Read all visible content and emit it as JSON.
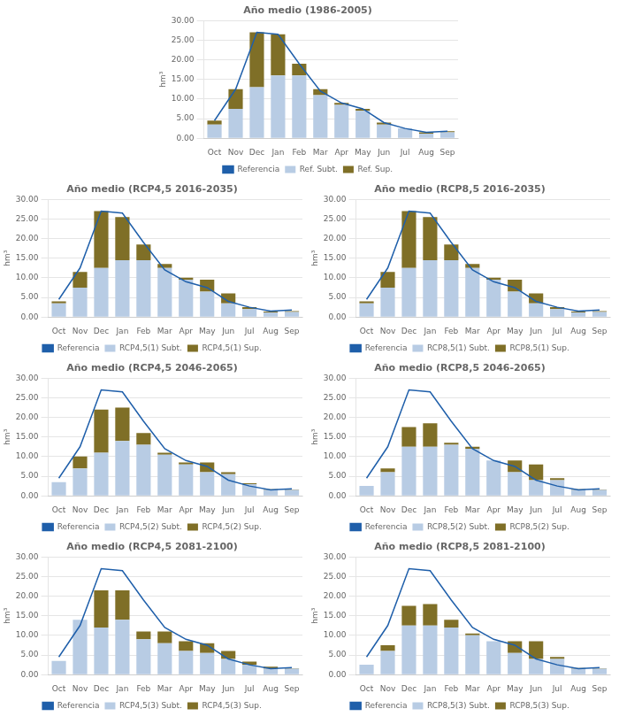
{
  "chart_data": [
    {
      "type": "bar",
      "title": "Año medio (1986-2005)",
      "ylabel": "hm³",
      "categories": [
        "Oct",
        "Nov",
        "Dec",
        "Jan",
        "Feb",
        "Mar",
        "Apr",
        "May",
        "Jun",
        "Jul",
        "Aug",
        "Sep"
      ],
      "series": [
        {
          "name": "Ref. Subt.",
          "type": "bar",
          "color": "#B8CCE4",
          "values": [
            3.5,
            7.5,
            13.0,
            16.0,
            16.0,
            11.0,
            8.5,
            7.0,
            3.5,
            2.5,
            1.2,
            1.5
          ]
        },
        {
          "name": "Ref. Sup.",
          "type": "bar",
          "color": "#7F6F27",
          "values": [
            1.0,
            5.0,
            14.0,
            10.5,
            3.0,
            1.5,
            0.5,
            0.5,
            0.5,
            0.0,
            0.3,
            0.3
          ]
        },
        {
          "name": "Referencia",
          "type": "line",
          "color": "#1F5FAA",
          "values": [
            4.5,
            12.5,
            27.0,
            26.5,
            19.0,
            12.0,
            9.0,
            7.5,
            4.0,
            2.5,
            1.5,
            1.8
          ]
        }
      ],
      "stacked": true,
      "grid": true,
      "legend": "bottom",
      "ylim": [
        0,
        30
      ],
      "yticks": [
        {
          "value": 0,
          "label": "0.00"
        },
        {
          "value": 5,
          "label": "5.00"
        },
        {
          "value": 10,
          "label": "10.00"
        },
        {
          "value": 15,
          "label": "15.00"
        },
        {
          "value": 20,
          "label": "20.00"
        },
        {
          "value": 25,
          "label": "25.00"
        },
        {
          "value": 30,
          "label": "30.00"
        }
      ]
    },
    {
      "type": "bar",
      "title": "Año medio (RCP4,5 2016-2035)",
      "ylabel": "hm³",
      "categories": [
        "Oct",
        "Nov",
        "Dec",
        "Jan",
        "Feb",
        "Mar",
        "Apr",
        "May",
        "Jun",
        "Jul",
        "Aug",
        "Sep"
      ],
      "series": [
        {
          "name": "RCP4,5(1) Subt.",
          "type": "bar",
          "color": "#B8CCE4",
          "values": [
            3.5,
            7.5,
            12.5,
            14.5,
            14.5,
            12.5,
            9.5,
            6.5,
            3.5,
            2.0,
            1.2,
            1.3
          ]
        },
        {
          "name": "RCP4,5(1) Sup.",
          "type": "bar",
          "color": "#7F6F27",
          "values": [
            0.5,
            4.0,
            14.5,
            11.0,
            4.0,
            1.0,
            0.5,
            3.0,
            2.5,
            0.5,
            0.2,
            0.2
          ]
        },
        {
          "name": "Referencia",
          "type": "line",
          "color": "#1F5FAA",
          "values": [
            4.5,
            12.5,
            27.0,
            26.5,
            19.0,
            12.0,
            9.0,
            7.5,
            4.0,
            2.5,
            1.5,
            1.8
          ]
        }
      ],
      "stacked": true,
      "grid": true,
      "legend": "bottom",
      "ylim": [
        0,
        30
      ],
      "yticks": [
        {
          "value": 0,
          "label": "0.00"
        },
        {
          "value": 5,
          "label": "5.00"
        },
        {
          "value": 10,
          "label": "10.00"
        },
        {
          "value": 15,
          "label": "15.00"
        },
        {
          "value": 20,
          "label": "20.00"
        },
        {
          "value": 25,
          "label": "25.00"
        },
        {
          "value": 30,
          "label": "30.00"
        }
      ]
    },
    {
      "type": "bar",
      "title": "Año medio (RCP8,5 2016-2035)",
      "ylabel": "hm³",
      "categories": [
        "Oct",
        "Nov",
        "Dec",
        "Jan",
        "Feb",
        "Mar",
        "Apr",
        "May",
        "Jun",
        "Jul",
        "Aug",
        "Sep"
      ],
      "series": [
        {
          "name": "RCP8,5(1) Subt.",
          "type": "bar",
          "color": "#B8CCE4",
          "values": [
            3.5,
            7.5,
            12.5,
            14.5,
            14.5,
            12.5,
            9.5,
            6.5,
            3.5,
            2.0,
            1.2,
            1.3
          ]
        },
        {
          "name": "RCP8,5(1) Sup.",
          "type": "bar",
          "color": "#7F6F27",
          "values": [
            0.5,
            4.0,
            14.5,
            11.0,
            4.0,
            1.0,
            0.5,
            3.0,
            2.5,
            0.5,
            0.2,
            0.2
          ]
        },
        {
          "name": "Referencia",
          "type": "line",
          "color": "#1F5FAA",
          "values": [
            4.5,
            12.5,
            27.0,
            26.5,
            19.0,
            12.0,
            9.0,
            7.5,
            4.0,
            2.5,
            1.5,
            1.8
          ]
        }
      ],
      "stacked": true,
      "grid": true,
      "legend": "bottom",
      "ylim": [
        0,
        30
      ],
      "yticks": [
        {
          "value": 0,
          "label": "0.00"
        },
        {
          "value": 5,
          "label": "5.00"
        },
        {
          "value": 10,
          "label": "10.00"
        },
        {
          "value": 15,
          "label": "15.00"
        },
        {
          "value": 20,
          "label": "20.00"
        },
        {
          "value": 25,
          "label": "25.00"
        },
        {
          "value": 30,
          "label": "30.00"
        }
      ]
    },
    {
      "type": "bar",
      "title": "Año medio (RCP4,5 2046-2065)",
      "ylabel": "hm³",
      "categories": [
        "Oct",
        "Nov",
        "Dec",
        "Jan",
        "Feb",
        "Mar",
        "Apr",
        "May",
        "Jun",
        "Jul",
        "Aug",
        "Sep"
      ],
      "series": [
        {
          "name": "RCP4,5(2) Subt.",
          "type": "bar",
          "color": "#B8CCE4",
          "values": [
            3.5,
            7.0,
            11.0,
            14.0,
            13.0,
            10.5,
            8.0,
            6.0,
            5.5,
            3.0,
            1.5,
            1.5
          ]
        },
        {
          "name": "RCP4,5(2) Sup.",
          "type": "bar",
          "color": "#7F6F27",
          "values": [
            0.0,
            3.0,
            11.0,
            8.5,
            3.0,
            0.5,
            0.5,
            2.5,
            0.5,
            0.2,
            0.2,
            0.1
          ]
        },
        {
          "name": "Referencia",
          "type": "line",
          "color": "#1F5FAA",
          "values": [
            4.5,
            12.5,
            27.0,
            26.5,
            19.0,
            12.0,
            9.0,
            7.5,
            4.0,
            2.5,
            1.5,
            1.8
          ]
        }
      ],
      "stacked": true,
      "grid": true,
      "legend": "bottom",
      "ylim": [
        0,
        30
      ],
      "yticks": [
        {
          "value": 0,
          "label": "0.00"
        },
        {
          "value": 5,
          "label": "5.00"
        },
        {
          "value": 10,
          "label": "10.00"
        },
        {
          "value": 15,
          "label": "15.00"
        },
        {
          "value": 20,
          "label": "20.00"
        },
        {
          "value": 25,
          "label": "25.00"
        },
        {
          "value": 30,
          "label": "30.00"
        }
      ]
    },
    {
      "type": "bar",
      "title": "Año medio (RCP8,5 2046-2065)",
      "ylabel": "hm³",
      "categories": [
        "Oct",
        "Nov",
        "Dec",
        "Jan",
        "Feb",
        "Mar",
        "Apr",
        "May",
        "Jun",
        "Jul",
        "Aug",
        "Sep"
      ],
      "series": [
        {
          "name": "RCP8,5(2) Subt.",
          "type": "bar",
          "color": "#B8CCE4",
          "values": [
            2.5,
            6.0,
            12.5,
            12.5,
            13.0,
            12.0,
            9.0,
            6.0,
            4.0,
            4.0,
            1.5,
            1.5
          ]
        },
        {
          "name": "RCP8,5(2) Sup.",
          "type": "bar",
          "color": "#7F6F27",
          "values": [
            0.0,
            1.0,
            5.0,
            6.0,
            0.5,
            0.5,
            0.0,
            3.0,
            4.0,
            0.5,
            0.2,
            0.1
          ]
        },
        {
          "name": "Referencia",
          "type": "line",
          "color": "#1F5FAA",
          "values": [
            4.5,
            12.5,
            27.0,
            26.5,
            19.0,
            12.0,
            9.0,
            7.5,
            4.0,
            2.5,
            1.5,
            1.8
          ]
        }
      ],
      "stacked": true,
      "grid": true,
      "legend": "bottom",
      "ylim": [
        0,
        30
      ],
      "yticks": [
        {
          "value": 0,
          "label": "0.00"
        },
        {
          "value": 5,
          "label": "5.00"
        },
        {
          "value": 10,
          "label": "10.00"
        },
        {
          "value": 15,
          "label": "15.00"
        },
        {
          "value": 20,
          "label": "20.00"
        },
        {
          "value": 25,
          "label": "25.00"
        },
        {
          "value": 30,
          "label": "30.00"
        }
      ]
    },
    {
      "type": "bar",
      "title": "Año medio (RCP4,5 2081-2100)",
      "ylabel": "hm³",
      "categories": [
        "Oct",
        "Nov",
        "Dec",
        "Jan",
        "Feb",
        "Mar",
        "Apr",
        "May",
        "Jun",
        "Jul",
        "Aug",
        "Sep"
      ],
      "series": [
        {
          "name": "RCP4,5(3) Subt.",
          "type": "bar",
          "color": "#B8CCE4",
          "values": [
            3.5,
            14.0,
            12.0,
            14.0,
            9.0,
            8.0,
            6.0,
            5.5,
            4.0,
            2.5,
            1.5,
            1.5
          ]
        },
        {
          "name": "RCP4,5(3) Sup.",
          "type": "bar",
          "color": "#7F6F27",
          "values": [
            0.0,
            0.0,
            9.5,
            7.5,
            2.0,
            3.0,
            2.5,
            2.5,
            2.0,
            0.8,
            0.5,
            0.1
          ]
        },
        {
          "name": "Referencia",
          "type": "line",
          "color": "#1F5FAA",
          "values": [
            4.5,
            12.5,
            27.0,
            26.5,
            19.0,
            12.0,
            9.0,
            7.5,
            4.0,
            2.5,
            1.5,
            1.8
          ]
        }
      ],
      "stacked": true,
      "grid": true,
      "legend": "bottom",
      "ylim": [
        0,
        30
      ],
      "yticks": [
        {
          "value": 0,
          "label": "0.00"
        },
        {
          "value": 5,
          "label": "5.00"
        },
        {
          "value": 10,
          "label": "10.00"
        },
        {
          "value": 15,
          "label": "15.00"
        },
        {
          "value": 20,
          "label": "20.00"
        },
        {
          "value": 25,
          "label": "25.00"
        },
        {
          "value": 30,
          "label": "30.00"
        }
      ]
    },
    {
      "type": "bar",
      "title": "Año medio (RCP8,5 2081-2100)",
      "ylabel": "hm³",
      "categories": [
        "Oct",
        "Nov",
        "Dec",
        "Jan",
        "Feb",
        "Mar",
        "Apr",
        "May",
        "Jun",
        "Jul",
        "Aug",
        "Sep"
      ],
      "series": [
        {
          "name": "RCP8,5(3) Subt.",
          "type": "bar",
          "color": "#B8CCE4",
          "values": [
            2.5,
            6.0,
            12.5,
            12.5,
            12.0,
            10.0,
            8.5,
            5.5,
            4.0,
            4.0,
            1.5,
            1.5
          ]
        },
        {
          "name": "RCP8,5(3) Sup.",
          "type": "bar",
          "color": "#7F6F27",
          "values": [
            0.0,
            1.5,
            5.0,
            5.5,
            2.0,
            0.5,
            0.0,
            3.0,
            4.5,
            0.5,
            0.2,
            0.1
          ]
        },
        {
          "name": "Referencia",
          "type": "line",
          "color": "#1F5FAA",
          "values": [
            4.5,
            12.5,
            27.0,
            26.5,
            19.0,
            12.0,
            9.0,
            7.5,
            4.0,
            2.5,
            1.5,
            1.8
          ]
        }
      ],
      "stacked": true,
      "grid": true,
      "legend": "bottom",
      "ylim": [
        0,
        30
      ],
      "yticks": [
        {
          "value": 0,
          "label": "0.00"
        },
        {
          "value": 5,
          "label": "5.00"
        },
        {
          "value": 10,
          "label": "10.00"
        },
        {
          "value": 15,
          "label": "15.00"
        },
        {
          "value": 20,
          "label": "20.00"
        },
        {
          "value": 25,
          "label": "25.00"
        },
        {
          "value": 30,
          "label": "30.00"
        }
      ]
    }
  ]
}
